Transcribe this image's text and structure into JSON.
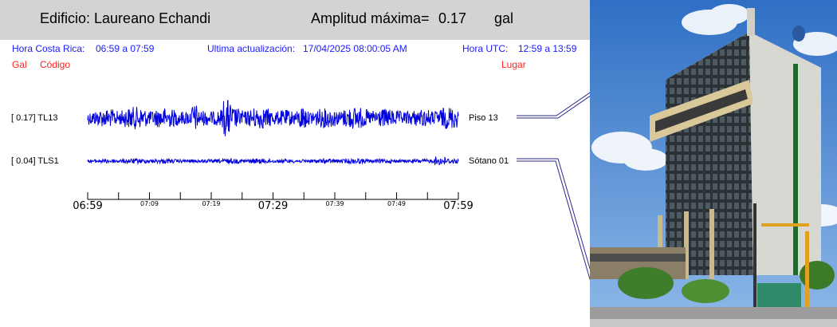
{
  "header": {
    "title": "Edificio: Laureano Echandi",
    "amplitude_label": "Amplitud máxima=",
    "amplitude_value": "0.17",
    "amplitude_unit": "gal"
  },
  "info": {
    "local_time_label": "Hora Costa Rica:",
    "local_time_value": "06:59 a 07:59",
    "update_label": "Ultima actualización:",
    "update_value": "17/04/2025 08:00:05 AM",
    "utc_label": "Hora UTC:",
    "utc_value": "12:59 a 13:59"
  },
  "columns": {
    "gal": "Gal",
    "code": "Código",
    "place": "Lugar"
  },
  "channels": [
    {
      "label": "[   0.17] TL13",
      "amplitude": 0.17,
      "place": "Piso 13"
    },
    {
      "label": "[   0.04] TLS1",
      "amplitude": 0.04,
      "place": "Sótano 01"
    }
  ],
  "time_axis": {
    "major_ticks": [
      "06:59",
      "07:29",
      "07:59"
    ],
    "minor_ticks": [
      "07:09",
      "07:19",
      "07:39",
      "07:49"
    ]
  },
  "colors": {
    "trace": "#0000dd",
    "info_text": "#1a1aff",
    "column_header": "#ff2020",
    "header_band": "#d3d3d3"
  }
}
